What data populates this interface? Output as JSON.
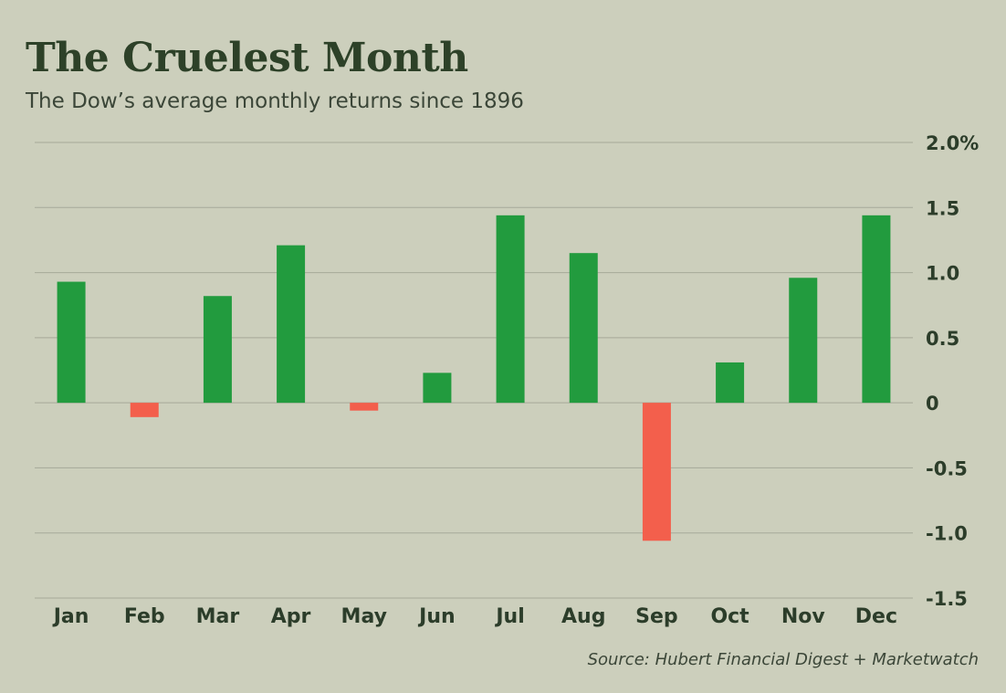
{
  "header": {
    "title": "The Cruelest Month",
    "subtitle": "The Dow’s average monthly returns since 1896"
  },
  "footer": {
    "source": "Source: Hubert Financial Digest + Marketwatch"
  },
  "colors": {
    "background": "#cccfbc",
    "positive": "#229b3e",
    "negative": "#f35f4c",
    "grid": "#a6a999",
    "text": "#2c3d2a"
  },
  "chart_data": {
    "type": "bar",
    "title": "The Cruelest Month",
    "subtitle": "The Dow’s average monthly returns since 1896",
    "xlabel": "",
    "ylabel": "",
    "categories": [
      "Jan",
      "Feb",
      "Mar",
      "Apr",
      "May",
      "Jun",
      "Jul",
      "Aug",
      "Sep",
      "Oct",
      "Nov",
      "Dec"
    ],
    "values": [
      0.93,
      -0.11,
      0.82,
      1.21,
      -0.06,
      0.23,
      1.44,
      1.15,
      -1.06,
      0.31,
      0.96,
      1.44
    ],
    "ylim": [
      -1.5,
      2.0
    ],
    "yticks": [
      2.0,
      1.5,
      1.0,
      0.5,
      0,
      -0.5,
      -1.0,
      -1.5
    ],
    "ytick_labels": [
      "2.0%",
      "1.5",
      "1.0",
      "0.5",
      "0",
      "-0.5",
      "-1.0",
      "-1.5"
    ],
    "grid": true,
    "axis_position": "right",
    "source": "Source: Hubert Financial Digest + Marketwatch"
  }
}
